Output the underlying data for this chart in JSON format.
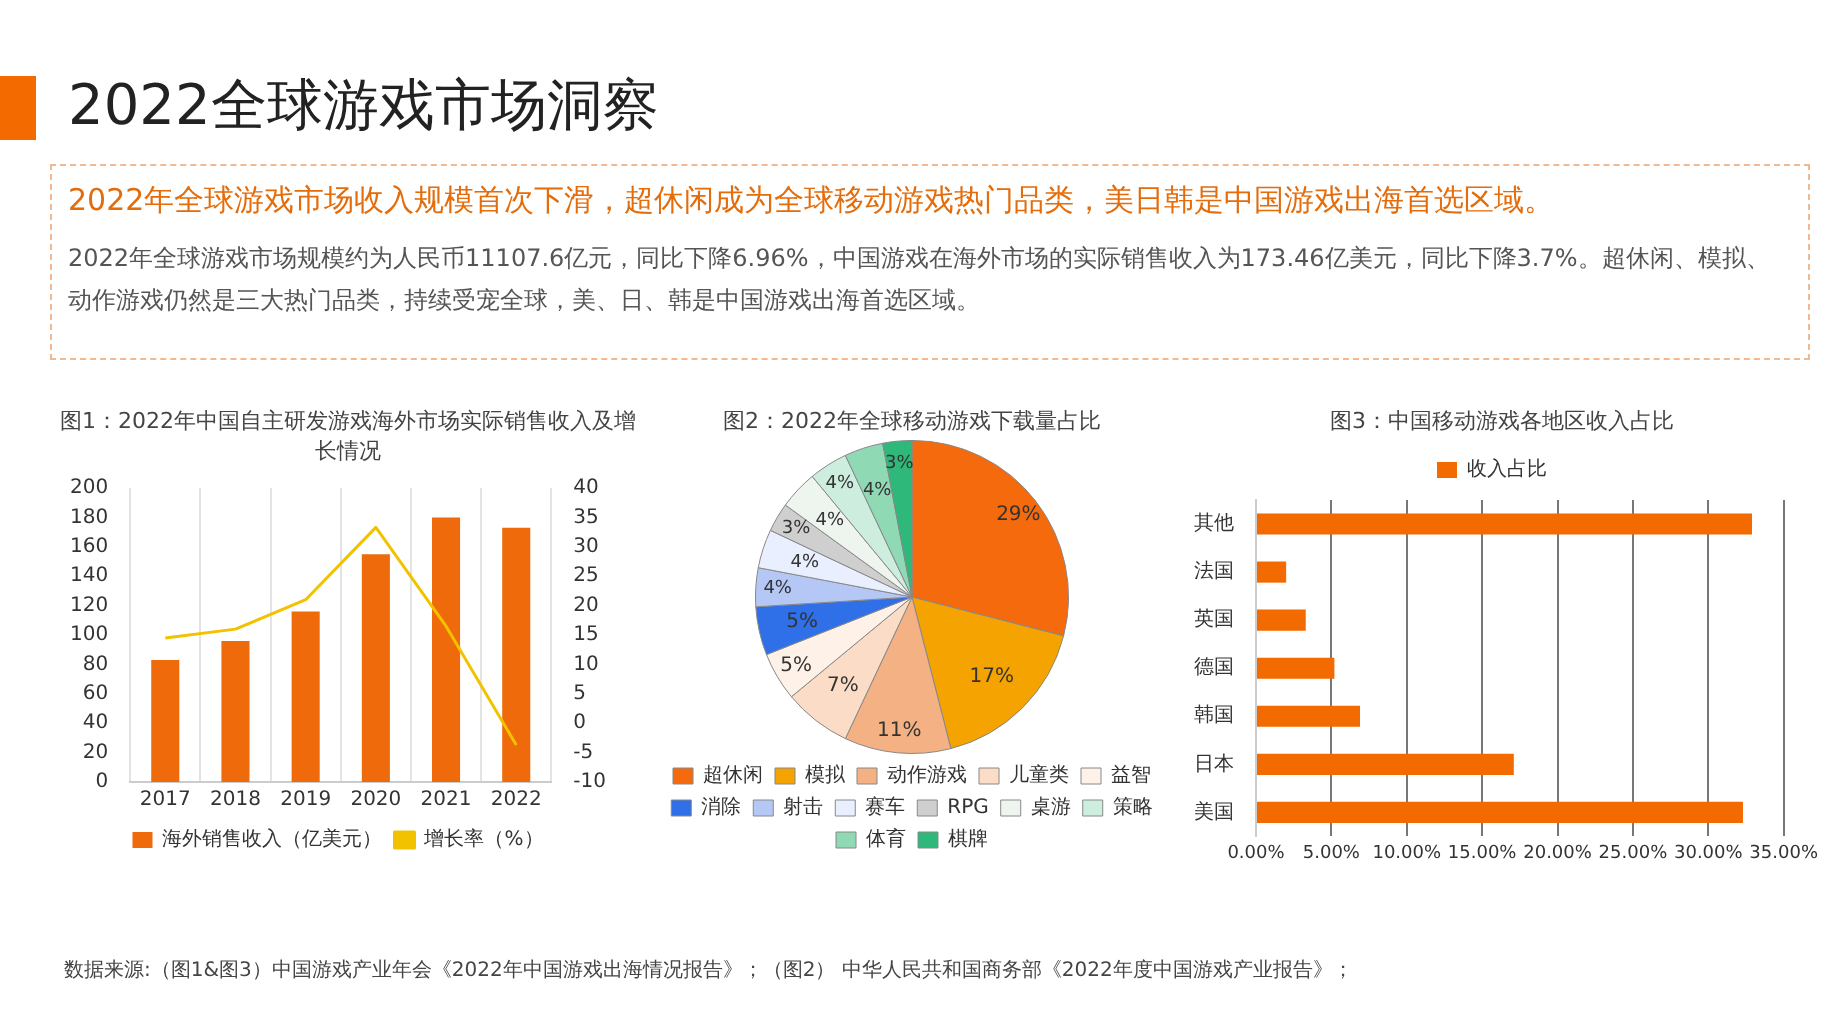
{
  "chart_data": [
    {
      "type": "other",
      "title": "2022全球游戏市场洞察",
      "subtitle": "2022年全球游戏市场收入规模首次下滑，超休闲成为全球移动游戏热门品类，美日韩是中国游戏出海首选区域。",
      "annotations": [
        "2022年全球游戏市场规模约为人民币11107.6亿元，同比下降6.96%，中国游戏在海外市场的实际销售收入为173.46亿美元，同比下降3.7%。超休闲、模拟、动作游戏仍然是三大热门品类，持续受宠全球，美、日、韩是中国游戏出海首选区域。"
      ]
    },
    {
      "type": "bar",
      "title": "图1：2022年中国自主研发游戏海外市场实际销售收入及增长情况",
      "categories": [
        "2017",
        "2018",
        "2019",
        "2020",
        "2021",
        "2022"
      ],
      "series": [
        {
          "name": "海外销售收入（亿美元）",
          "type": "bar",
          "color": "#ee6a0a",
          "values": [
            83,
            96,
            116,
            155,
            180,
            173
          ]
        },
        {
          "name": "增长率（%）",
          "type": "line",
          "axis": "y2",
          "color": "#f2c200",
          "values": [
            14.5,
            16,
            21,
            33.3,
            16.5,
            -3.7
          ]
        }
      ],
      "ylim": [
        0,
        200
      ],
      "yticks": [
        0,
        20,
        40,
        60,
        80,
        100,
        120,
        140,
        160,
        180,
        200
      ],
      "y2lim": [
        -10,
        40
      ],
      "y2ticks": [
        -10,
        -5,
        0,
        5,
        10,
        15,
        20,
        25,
        30,
        35,
        40
      ],
      "grid": "x",
      "legend": "bottom",
      "marker": "none"
    },
    {
      "type": "pie",
      "title": "图2：2022年全球移动游戏下载量占比",
      "categories": [
        "超休闲",
        "模拟",
        "动作游戏",
        "儿童类",
        "益智",
        "消除",
        "射击",
        "赛车",
        "RPG",
        "桌游",
        "策略",
        "体育",
        "棋牌"
      ],
      "values": [
        29,
        17,
        11,
        7,
        5,
        5,
        4,
        4,
        3,
        4,
        4,
        4,
        3
      ],
      "value_labels": [
        "29%",
        "17%",
        "11%",
        "7%",
        "5%",
        "5%",
        "4%",
        "4%",
        "3%",
        "4%",
        "4%",
        "4%",
        "3%"
      ],
      "colors": [
        "#f46a0c",
        "#f5a300",
        "#f4b183",
        "#fbdcc6",
        "#fdf1e8",
        "#2f6fe8",
        "#b4c7f5",
        "#e9efff",
        "#cfcfcf",
        "#eef5ef",
        "#cdeedf",
        "#8fd9b5",
        "#2eb87a"
      ],
      "legend": "bottom"
    },
    {
      "type": "bar",
      "title": "图3：中国移动游戏各地区收入占比",
      "orientation": "horizontal",
      "categories": [
        "其他",
        "法国",
        "英国",
        "德国",
        "韩国",
        "日本",
        "美国"
      ],
      "series": [
        {
          "name": "收入占比",
          "color": "#f26a00",
          "values": [
            32.9,
            2.0,
            3.3,
            5.2,
            6.9,
            17.1,
            32.3
          ]
        }
      ],
      "xlim": [
        0,
        35
      ],
      "xticks": [
        {
          "value": 0,
          "label": "0.00%"
        },
        {
          "value": 5,
          "label": "5.00%"
        },
        {
          "value": 10,
          "label": "10.00%"
        },
        {
          "value": 15,
          "label": "15.00%"
        },
        {
          "value": 20,
          "label": "20.00%"
        },
        {
          "value": 25,
          "label": "25.00%"
        },
        {
          "value": 30,
          "label": "30.00%"
        },
        {
          "value": 35,
          "label": "35.00%"
        }
      ],
      "grid": "x",
      "legend": "top"
    },
    {
      "type": "other",
      "annotations": [
        "数据来源:（图1&图3）中国游戏产业年会《2022年中国游戏出海情况报告》；（图2） 中华人民共和国商务部《2022年度中国游戏产业报告》；"
      ]
    }
  ]
}
